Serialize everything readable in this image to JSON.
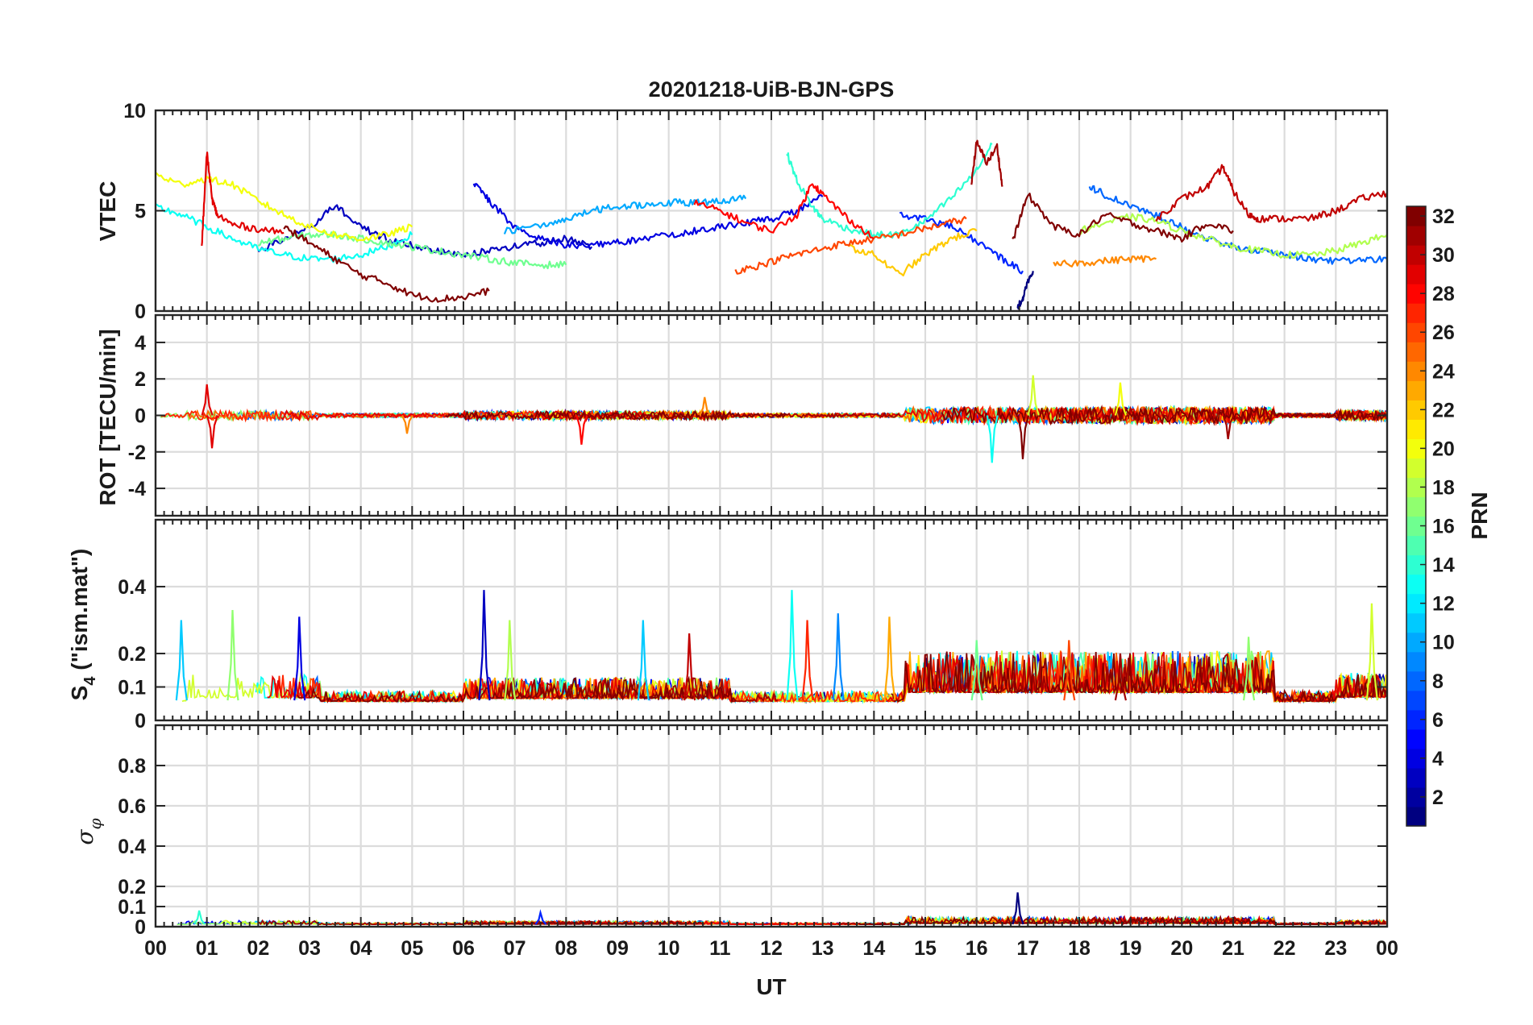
{
  "title": "20201218-UiB-BJN-GPS",
  "colorbar": {
    "label": "PRN",
    "ticks": [
      2,
      4,
      6,
      8,
      10,
      12,
      14,
      16,
      18,
      20,
      22,
      24,
      26,
      28,
      30,
      32
    ],
    "range": [
      1,
      32
    ],
    "colormap": "jet"
  },
  "chart_data": [
    {
      "type": "line",
      "panel": "vtec",
      "ylabel": "VTEC",
      "xlim": [
        0,
        24
      ],
      "ylim": [
        0,
        10
      ],
      "yticks": [
        0,
        5,
        10
      ],
      "grid": true,
      "series": [
        {
          "prn": 1,
          "x": [
            16.8,
            16.9,
            17.0,
            17.1
          ],
          "y": [
            0.2,
            0.6,
            1.5,
            2.0
          ]
        },
        {
          "prn": 3,
          "x": [
            2.0,
            2.5,
            3.0,
            3.5,
            4.0,
            4.5,
            5.0,
            5.5,
            6.0,
            6.5,
            7.0,
            7.5,
            8.0,
            8.5
          ],
          "y": [
            3.0,
            3.6,
            4.1,
            5.3,
            4.2,
            3.6,
            3.3,
            3.0,
            2.8,
            3.0,
            3.2,
            3.4,
            3.6,
            3.2
          ]
        },
        {
          "prn": 4,
          "x": [
            6.2,
            6.5,
            7.0,
            7.5,
            8.0,
            8.5,
            9.0,
            9.5,
            10.0,
            10.5,
            11.0,
            11.5,
            12.0,
            12.5,
            13.0
          ],
          "y": [
            6.4,
            5.5,
            4.2,
            3.6,
            3.3,
            3.3,
            3.4,
            3.6,
            3.8,
            4.0,
            4.2,
            4.4,
            4.6,
            5.0,
            5.7
          ]
        },
        {
          "prn": 6,
          "x": [
            14.5,
            15.0,
            15.5,
            16.0,
            16.5,
            16.9
          ],
          "y": [
            4.8,
            4.6,
            4.2,
            3.5,
            2.6,
            2.0
          ]
        },
        {
          "prn": 8,
          "x": [
            18.2,
            18.5,
            19.0,
            19.5,
            20.0,
            20.5,
            21.0,
            21.5,
            22.0,
            22.5,
            23.0,
            23.5,
            24.0
          ],
          "y": [
            6.2,
            5.8,
            5.2,
            4.8,
            4.2,
            3.6,
            3.2,
            3.0,
            2.8,
            2.6,
            2.5,
            2.5,
            2.6
          ]
        },
        {
          "prn": 10,
          "x": [
            6.8,
            7.5,
            8.0,
            8.5,
            9.0,
            9.5,
            10.0,
            10.5,
            11.0,
            11.5
          ],
          "y": [
            4.0,
            4.2,
            4.6,
            5.0,
            5.2,
            5.3,
            5.4,
            5.4,
            5.5,
            5.6
          ]
        },
        {
          "prn": 13,
          "x": [
            0.0,
            0.5,
            1.0,
            1.5,
            2.0,
            2.5,
            3.0,
            3.5,
            4.0,
            4.5,
            5.0
          ],
          "y": [
            5.2,
            4.8,
            4.2,
            3.6,
            3.1,
            2.8,
            2.6,
            2.6,
            2.8,
            3.2,
            3.8
          ]
        },
        {
          "prn": 14,
          "x": [
            12.3,
            12.5,
            12.8,
            13.0,
            13.5,
            14.0,
            14.5,
            15.0,
            15.5,
            16.0,
            16.3
          ],
          "y": [
            7.9,
            6.5,
            5.2,
            4.6,
            4.1,
            3.8,
            3.8,
            4.5,
            5.6,
            7.0,
            8.3
          ]
        },
        {
          "prn": 16,
          "x": [
            2.0,
            2.5,
            3.0,
            3.5,
            4.0,
            4.5,
            5.0,
            5.5,
            6.0,
            6.5,
            7.0,
            7.5,
            8.0
          ],
          "y": [
            3.4,
            3.6,
            3.8,
            3.8,
            3.6,
            3.4,
            3.2,
            3.0,
            2.8,
            2.6,
            2.4,
            2.3,
            2.3
          ]
        },
        {
          "prn": 18,
          "x": [
            18.0,
            18.5,
            19.0,
            19.5,
            20.0,
            20.5,
            21.0,
            21.5,
            22.0,
            22.5,
            23.0,
            23.5,
            24.0
          ],
          "y": [
            4.0,
            4.4,
            4.7,
            4.5,
            4.0,
            3.6,
            3.2,
            3.0,
            2.8,
            2.8,
            3.0,
            3.4,
            3.8
          ]
        },
        {
          "prn": 20,
          "x": [
            0.0,
            0.5,
            1.0,
            1.5,
            2.0,
            2.5,
            3.0,
            3.5,
            4.0,
            4.5,
            5.0
          ],
          "y": [
            6.8,
            6.3,
            6.6,
            6.3,
            5.5,
            4.8,
            4.2,
            3.8,
            3.6,
            3.8,
            4.2
          ]
        },
        {
          "prn": 22,
          "x": [
            13.5,
            14.0,
            14.5,
            15.0,
            15.5,
            16.0
          ],
          "y": [
            3.2,
            2.8,
            1.8,
            2.8,
            3.6,
            4.0
          ]
        },
        {
          "prn": 24,
          "x": [
            17.5,
            18.0,
            18.5,
            19.0,
            19.5
          ],
          "y": [
            2.3,
            2.4,
            2.5,
            2.6,
            2.6
          ]
        },
        {
          "prn": 26,
          "x": [
            11.3,
            11.8,
            12.3,
            12.8,
            13.3,
            13.8,
            14.3,
            14.8,
            15.3,
            15.8
          ],
          "y": [
            2.0,
            2.3,
            2.7,
            3.0,
            3.3,
            3.5,
            3.7,
            4.0,
            4.3,
            4.6
          ]
        },
        {
          "prn": 28,
          "x": [
            10.5,
            11.0,
            11.5,
            12.0,
            12.5,
            12.8,
            13.0,
            13.5,
            14.0
          ],
          "y": [
            5.4,
            5.0,
            4.4,
            4.0,
            4.8,
            6.4,
            5.8,
            4.6,
            3.6
          ]
        },
        {
          "prn": 29,
          "x": [
            0.9,
            1.0,
            1.1,
            1.2,
            1.5,
            2.0,
            2.5
          ],
          "y": [
            3.2,
            7.9,
            5.6,
            4.8,
            4.3,
            4.1,
            3.9
          ]
        },
        {
          "prn": 30,
          "x": [
            19.5,
            20.0,
            20.5,
            20.8,
            21.0,
            21.3,
            21.5,
            22.0,
            22.5,
            23.0,
            23.5,
            24.0
          ],
          "y": [
            4.6,
            5.6,
            6.2,
            7.2,
            6.0,
            4.8,
            4.6,
            4.6,
            4.6,
            5.0,
            5.6,
            5.9
          ]
        },
        {
          "prn": 31,
          "x": [
            15.9,
            16.0,
            16.2,
            16.4,
            16.5
          ],
          "y": [
            6.4,
            8.4,
            7.4,
            8.2,
            6.2
          ]
        },
        {
          "prn": 32,
          "x": [
            2.5,
            3.0,
            3.5,
            4.0,
            4.5,
            5.0,
            5.5,
            6.0,
            6.5
          ],
          "y": [
            4.2,
            3.4,
            2.6,
            1.8,
            1.4,
            0.8,
            0.6,
            0.7,
            1.0
          ]
        },
        {
          "prn": 32,
          "x": [
            16.7,
            17.0,
            17.5,
            18.0,
            18.5,
            19.0,
            19.5,
            20.0,
            20.5,
            21.0
          ],
          "y": [
            3.5,
            5.8,
            4.2,
            3.8,
            4.8,
            4.4,
            4.0,
            3.6,
            4.4,
            4.0
          ]
        }
      ]
    },
    {
      "type": "line",
      "panel": "rot",
      "ylabel": "ROT [TECU/min]",
      "xlim": [
        0,
        24
      ],
      "ylim": [
        -5.5,
        5.5
      ],
      "yticks": [
        -4,
        -2,
        0,
        2,
        4
      ],
      "grid": true,
      "spikes": [
        {
          "prn": 29,
          "x": 1.0,
          "y": 1.7
        },
        {
          "prn": 29,
          "x": 1.1,
          "y": -1.8
        },
        {
          "prn": 24,
          "x": 4.9,
          "y": -1.0
        },
        {
          "prn": 28,
          "x": 8.3,
          "y": -1.6
        },
        {
          "prn": 24,
          "x": 10.7,
          "y": 1.0
        },
        {
          "prn": 13,
          "x": 16.3,
          "y": -2.6
        },
        {
          "prn": 32,
          "x": 16.9,
          "y": -2.4
        },
        {
          "prn": 19,
          "x": 17.1,
          "y": 2.2
        },
        {
          "prn": 20,
          "x": 18.8,
          "y": 1.8
        },
        {
          "prn": 31,
          "x": 20.9,
          "y": -1.3
        }
      ]
    },
    {
      "type": "line",
      "panel": "s4",
      "ylabel": "S4 (\"ism.mat\")",
      "xlim": [
        0,
        24
      ],
      "ylim": [
        0,
        0.6
      ],
      "yticks": [
        0,
        0.1,
        0.2,
        0.4
      ],
      "grid": true,
      "spikes": [
        {
          "prn": 11,
          "x": 0.5,
          "y": 0.3
        },
        {
          "prn": 17,
          "x": 1.5,
          "y": 0.33
        },
        {
          "prn": 4,
          "x": 2.8,
          "y": 0.31
        },
        {
          "prn": 3,
          "x": 6.4,
          "y": 0.39
        },
        {
          "prn": 18,
          "x": 6.9,
          "y": 0.3
        },
        {
          "prn": 11,
          "x": 9.5,
          "y": 0.3
        },
        {
          "prn": 30,
          "x": 10.4,
          "y": 0.26
        },
        {
          "prn": 13,
          "x": 12.4,
          "y": 0.39
        },
        {
          "prn": 27,
          "x": 12.7,
          "y": 0.3
        },
        {
          "prn": 9,
          "x": 13.3,
          "y": 0.32
        },
        {
          "prn": 23,
          "x": 14.3,
          "y": 0.31
        },
        {
          "prn": 16,
          "x": 16.0,
          "y": 0.24
        },
        {
          "prn": 26,
          "x": 17.8,
          "y": 0.24
        },
        {
          "prn": 31,
          "x": 18.8,
          "y": 0.2
        },
        {
          "prn": 17,
          "x": 21.3,
          "y": 0.25
        },
        {
          "prn": 19,
          "x": 23.7,
          "y": 0.35
        }
      ]
    },
    {
      "type": "line",
      "panel": "sigma_phi",
      "ylabel": "σφ",
      "xlabel": "UT",
      "xlim": [
        0,
        24
      ],
      "ylim": [
        0,
        1
      ],
      "yticks": [
        0,
        0.1,
        0.2,
        0.4,
        0.6,
        0.8
      ],
      "xticks": [
        "00",
        "01",
        "02",
        "03",
        "04",
        "05",
        "06",
        "07",
        "08",
        "09",
        "10",
        "11",
        "12",
        "13",
        "14",
        "15",
        "16",
        "17",
        "18",
        "19",
        "20",
        "21",
        "22",
        "23",
        "00"
      ],
      "grid": true,
      "spikes": [
        {
          "prn": 14,
          "x": 0.85,
          "y": 0.08
        },
        {
          "prn": 6,
          "x": 7.5,
          "y": 0.07
        },
        {
          "prn": 1,
          "x": 16.8,
          "y": 0.17
        }
      ]
    }
  ]
}
